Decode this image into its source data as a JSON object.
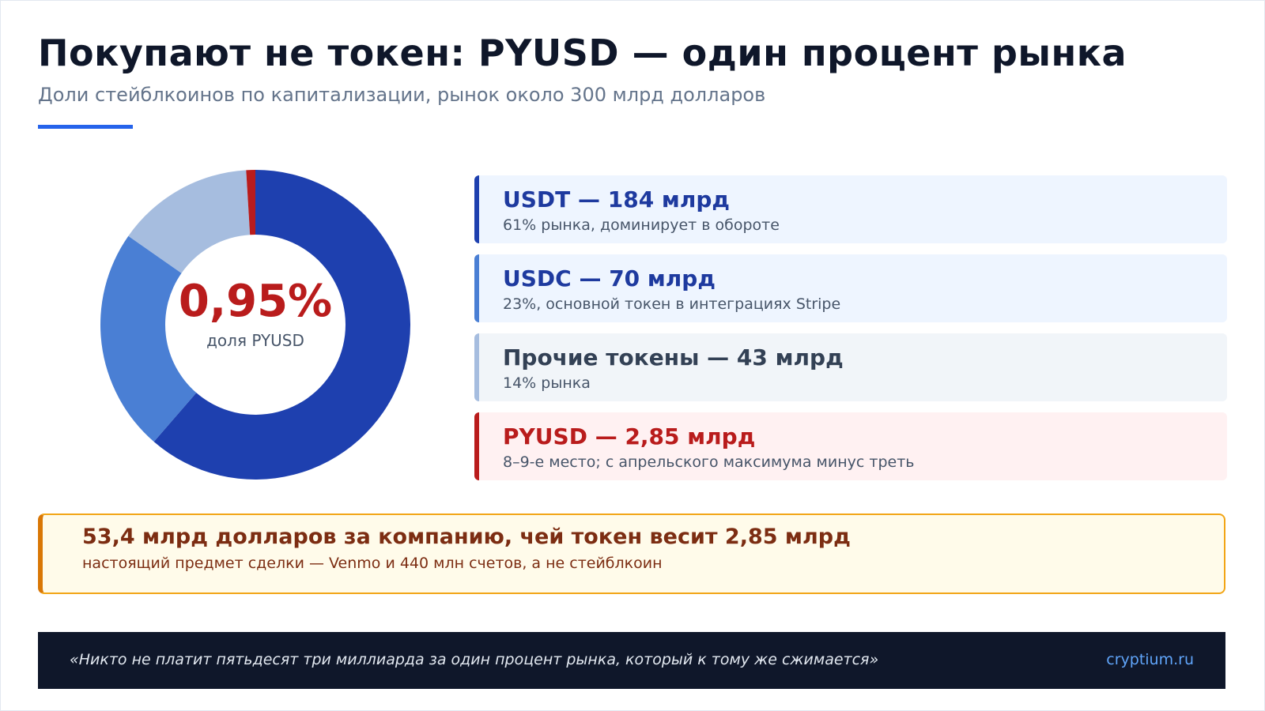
{
  "header": {
    "title": "Покупают не токен: PYUSD — один процент рынка",
    "subtitle": "Доли стейблкоинов по капитализации, рынок около 300 млрд долларов"
  },
  "chart_data": {
    "type": "pie",
    "donut": true,
    "center_value": "0,95%",
    "center_label": "доля PYUSD",
    "series": [
      {
        "name": "USDT",
        "value": 184,
        "color": "#1e40af"
      },
      {
        "name": "USDC",
        "value": 70,
        "color": "#4a7fd4"
      },
      {
        "name": "Прочие токены",
        "value": 43,
        "color": "#a6bddf"
      },
      {
        "name": "PYUSD",
        "value": 2.85,
        "color": "#b91c1c"
      }
    ]
  },
  "legend_cards": [
    {
      "title": "USDT — 184 млрд",
      "desc": "61% рынка, доминирует в обороте",
      "title_color": "#1e3a9f",
      "stripe_color": "#1e40af",
      "bg": "#eef5ff"
    },
    {
      "title": "USDC — 70 млрд",
      "desc": "23%, основной токен в интеграциях Stripe",
      "title_color": "#1e3a9f",
      "stripe_color": "#4a7fd4",
      "bg": "#eef5ff"
    },
    {
      "title": "Прочие токены — 43 млрд",
      "desc": "14% рынка",
      "title_color": "#334155",
      "stripe_color": "#a6bddf",
      "bg": "#f1f5f9"
    },
    {
      "title": "PYUSD — 2,85 млрд",
      "desc": "8–9-е место; с апрельского максимума минус треть",
      "title_color": "#b91c1c",
      "stripe_color": "#b91c1c",
      "bg": "#fff1f2"
    }
  ],
  "callout": {
    "title": "53,4 млрд долларов за компанию, чей токен весит 2,85 млрд",
    "desc": "настоящий предмет сделки — Venmo и 440 млн счетов, а не стейблкоин"
  },
  "footer": {
    "quote": "«Никто не платит пятьдесят три миллиарда за один процент рынка, который к тому же сжимается»",
    "brand": "cryptium.ru"
  },
  "colors": {
    "accent": "#2563eb",
    "pct_red": "#b91c1c"
  }
}
